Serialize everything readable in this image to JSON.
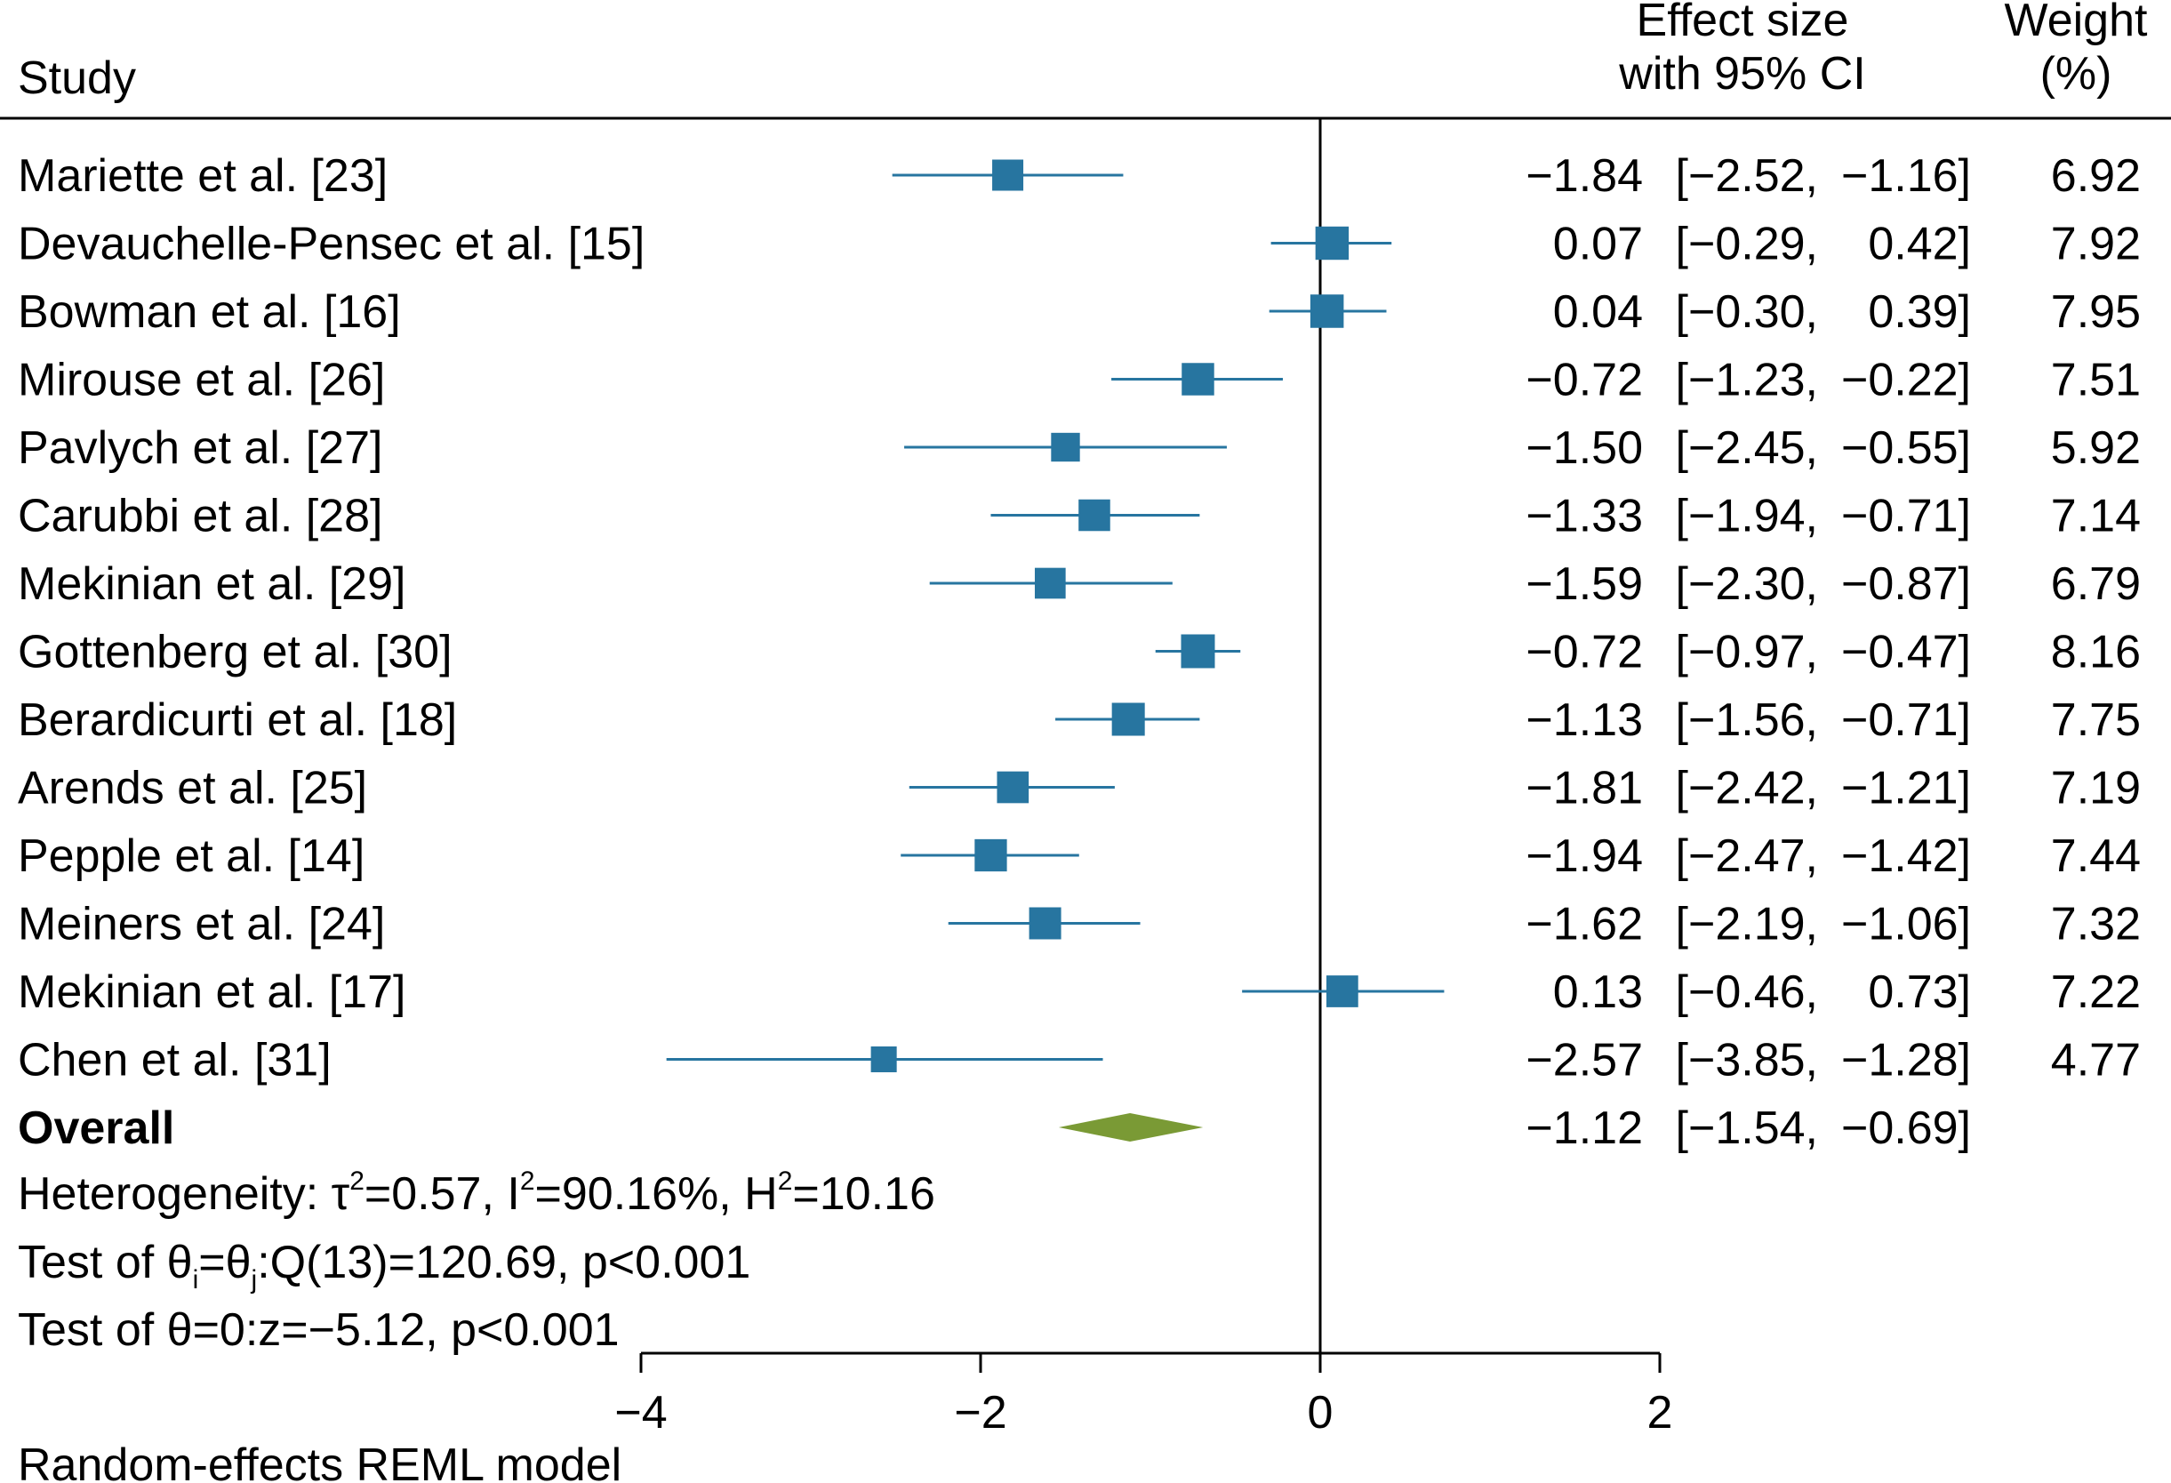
{
  "chart_data": {
    "type": "forest",
    "header": {
      "study": "Study",
      "effect_line1": "Effect size",
      "effect_line2": "with 95% CI",
      "weight_line1": "Weight",
      "weight_line2": "(%)"
    },
    "studies": [
      {
        "name": "Mariette et al. [23]",
        "effect": -1.84,
        "lo": -2.52,
        "hi": -1.16,
        "weight": 6.92,
        "es_text": "−1.84",
        "lo_text": "[−2.52,",
        "hi_text": "−1.16]",
        "weight_text": "6.92"
      },
      {
        "name": "Devauchelle-Pensec et al. [15]",
        "effect": 0.07,
        "lo": -0.29,
        "hi": 0.42,
        "weight": 7.92,
        "es_text": "0.07",
        "lo_text": "[−0.29,",
        "hi_text": "0.42]",
        "weight_text": "7.92"
      },
      {
        "name": "Bowman et al. [16]",
        "effect": 0.04,
        "lo": -0.3,
        "hi": 0.39,
        "weight": 7.95,
        "es_text": "0.04",
        "lo_text": "[−0.30,",
        "hi_text": "0.39]",
        "weight_text": "7.95"
      },
      {
        "name": "Mirouse et al. [26]",
        "effect": -0.72,
        "lo": -1.23,
        "hi": -0.22,
        "weight": 7.51,
        "es_text": "−0.72",
        "lo_text": "[−1.23,",
        "hi_text": "−0.22]",
        "weight_text": "7.51"
      },
      {
        "name": "Pavlych et al. [27]",
        "effect": -1.5,
        "lo": -2.45,
        "hi": -0.55,
        "weight": 5.92,
        "es_text": "−1.50",
        "lo_text": "[−2.45,",
        "hi_text": "−0.55]",
        "weight_text": "5.92"
      },
      {
        "name": "Carubbi et al. [28]",
        "effect": -1.33,
        "lo": -1.94,
        "hi": -0.71,
        "weight": 7.14,
        "es_text": "−1.33",
        "lo_text": "[−1.94,",
        "hi_text": "−0.71]",
        "weight_text": "7.14"
      },
      {
        "name": "Mekinian et al. [29]",
        "effect": -1.59,
        "lo": -2.3,
        "hi": -0.87,
        "weight": 6.79,
        "es_text": "−1.59",
        "lo_text": "[−2.30,",
        "hi_text": "−0.87]",
        "weight_text": "6.79"
      },
      {
        "name": "Gottenberg et al. [30]",
        "effect": -0.72,
        "lo": -0.97,
        "hi": -0.47,
        "weight": 8.16,
        "es_text": "−0.72",
        "lo_text": "[−0.97,",
        "hi_text": "−0.47]",
        "weight_text": "8.16"
      },
      {
        "name": "Berardicurti et al. [18]",
        "effect": -1.13,
        "lo": -1.56,
        "hi": -0.71,
        "weight": 7.75,
        "es_text": "−1.13",
        "lo_text": "[−1.56,",
        "hi_text": "−0.71]",
        "weight_text": "7.75"
      },
      {
        "name": "Arends et al. [25]",
        "effect": -1.81,
        "lo": -2.42,
        "hi": -1.21,
        "weight": 7.19,
        "es_text": "−1.81",
        "lo_text": "[−2.42,",
        "hi_text": "−1.21]",
        "weight_text": "7.19"
      },
      {
        "name": "Pepple et al. [14]",
        "effect": -1.94,
        "lo": -2.47,
        "hi": -1.42,
        "weight": 7.44,
        "es_text": "−1.94",
        "lo_text": "[−2.47,",
        "hi_text": "−1.42]",
        "weight_text": "7.44"
      },
      {
        "name": "Meiners et al. [24]",
        "effect": -1.62,
        "lo": -2.19,
        "hi": -1.06,
        "weight": 7.32,
        "es_text": "−1.62",
        "lo_text": "[−2.19,",
        "hi_text": "−1.06]",
        "weight_text": "7.32"
      },
      {
        "name": "Mekinian et al. [17]",
        "effect": 0.13,
        "lo": -0.46,
        "hi": 0.73,
        "weight": 7.22,
        "es_text": "0.13",
        "lo_text": "[−0.46,",
        "hi_text": "0.73]",
        "weight_text": "7.22"
      },
      {
        "name": "Chen et al. [31]",
        "effect": -2.57,
        "lo": -3.85,
        "hi": -1.28,
        "weight": 4.77,
        "es_text": "−2.57",
        "lo_text": "[−3.85,",
        "hi_text": "−1.28]",
        "weight_text": "4.77"
      }
    ],
    "overall": {
      "name": "Overall",
      "effect": -1.12,
      "lo": -1.54,
      "hi": -0.69,
      "es_text": "−1.12",
      "lo_text": "[−1.54,",
      "hi_text": "−0.69]"
    },
    "heterogeneity": {
      "prefix": "Heterogeneity: ",
      "tau_sym": "τ",
      "tau_sup": "2",
      "tau_val": "=0.57, I",
      "i_sup": "2",
      "i_val": "=90.16%, H",
      "h_sup": "2",
      "h_val": "=10.16"
    },
    "test_ij": {
      "prefix": "Test of ",
      "theta1": "θ",
      "sub_i": "i",
      "eq": "=",
      "theta2": "θ",
      "sub_j": "j",
      "rest": ":Q(13)=120.69, p<0.001"
    },
    "test_zero": {
      "prefix": "Test of ",
      "theta": "θ",
      "rest": "=0:z=−5.12, p<0.001"
    },
    "x_axis": {
      "range": [
        -4,
        2
      ],
      "ticks": [
        -4,
        -2,
        0,
        2
      ],
      "tick_labels": [
        "−4",
        "−2",
        "0",
        "2"
      ]
    },
    "model_note": "Random-effects REML model",
    "colors": {
      "marker": "#2775a0",
      "ci_line": "#2775a0",
      "diamond": "#7a9a35",
      "axis": "#000000"
    }
  }
}
